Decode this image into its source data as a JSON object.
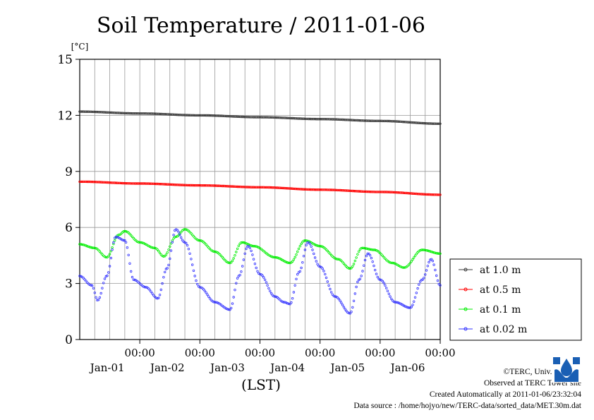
{
  "chart_data": {
    "type": "scatter",
    "title": "Soil Temperature / 2011-01-06",
    "ylabel": "[°C]",
    "xlabel": "(LST)",
    "ylim": [
      0,
      15
    ],
    "yticks": [
      0,
      3,
      6,
      9,
      12,
      15
    ],
    "xlim_days": [
      0,
      6
    ],
    "xticks": [
      {
        "time": "00:00",
        "date": "Jan-01"
      },
      {
        "time": "00:00",
        "date": "Jan-02"
      },
      {
        "time": "00:00",
        "date": "Jan-03"
      },
      {
        "time": "00:00",
        "date": "Jan-04"
      },
      {
        "time": "00:00",
        "date": "Jan-05"
      },
      {
        "time": "00:00",
        "date": "Jan-06"
      }
    ],
    "grid": true,
    "legend_position": "right",
    "series": [
      {
        "name": "at 1.0 m",
        "color": "#3a3a3a",
        "points": [
          [
            0.0,
            12.2
          ],
          [
            1.0,
            12.1
          ],
          [
            2.0,
            12.0
          ],
          [
            3.0,
            11.9
          ],
          [
            4.0,
            11.8
          ],
          [
            5.0,
            11.7
          ],
          [
            6.0,
            11.55
          ]
        ]
      },
      {
        "name": "at 0.5 m",
        "color": "#ff0000",
        "points": [
          [
            0.0,
            8.45
          ],
          [
            1.0,
            8.35
          ],
          [
            2.0,
            8.25
          ],
          [
            3.0,
            8.15
          ],
          [
            4.0,
            8.02
          ],
          [
            5.0,
            7.9
          ],
          [
            6.0,
            7.75
          ]
        ]
      },
      {
        "name": "at 0.1 m",
        "color": "#00ee00",
        "points": [
          [
            0.0,
            5.1
          ],
          [
            0.25,
            4.9
          ],
          [
            0.45,
            4.4
          ],
          [
            0.65,
            5.6
          ],
          [
            0.75,
            5.8
          ],
          [
            1.0,
            5.2
          ],
          [
            1.25,
            4.9
          ],
          [
            1.4,
            4.45
          ],
          [
            1.6,
            5.5
          ],
          [
            1.75,
            5.9
          ],
          [
            2.0,
            5.3
          ],
          [
            2.25,
            4.7
          ],
          [
            2.5,
            4.1
          ],
          [
            2.7,
            5.2
          ],
          [
            2.9,
            5.0
          ],
          [
            3.25,
            4.4
          ],
          [
            3.5,
            4.1
          ],
          [
            3.75,
            5.3
          ],
          [
            4.0,
            5.0
          ],
          [
            4.3,
            4.3
          ],
          [
            4.5,
            3.8
          ],
          [
            4.7,
            4.9
          ],
          [
            4.9,
            4.8
          ],
          [
            5.2,
            4.1
          ],
          [
            5.4,
            3.85
          ],
          [
            5.7,
            4.8
          ],
          [
            6.0,
            4.6
          ]
        ]
      },
      {
        "name": "at 0.02 m",
        "color": "#3333ff",
        "points": [
          [
            0.0,
            3.4
          ],
          [
            0.2,
            2.9
          ],
          [
            0.3,
            2.1
          ],
          [
            0.45,
            3.4
          ],
          [
            0.6,
            5.5
          ],
          [
            0.75,
            5.3
          ],
          [
            0.9,
            3.2
          ],
          [
            1.1,
            2.8
          ],
          [
            1.3,
            2.2
          ],
          [
            1.45,
            3.8
          ],
          [
            1.6,
            5.9
          ],
          [
            1.75,
            5.2
          ],
          [
            2.0,
            2.8
          ],
          [
            2.25,
            2.0
          ],
          [
            2.5,
            1.6
          ],
          [
            2.65,
            3.4
          ],
          [
            2.8,
            5.0
          ],
          [
            3.0,
            3.5
          ],
          [
            3.25,
            2.3
          ],
          [
            3.4,
            2.0
          ],
          [
            3.5,
            1.9
          ],
          [
            3.65,
            3.6
          ],
          [
            3.8,
            5.2
          ],
          [
            4.0,
            3.9
          ],
          [
            4.25,
            2.3
          ],
          [
            4.5,
            1.4
          ],
          [
            4.65,
            3.2
          ],
          [
            4.8,
            4.6
          ],
          [
            5.0,
            3.2
          ],
          [
            5.25,
            2.0
          ],
          [
            5.5,
            1.7
          ],
          [
            5.7,
            3.2
          ],
          [
            5.85,
            4.3
          ],
          [
            6.0,
            2.9
          ]
        ]
      }
    ]
  },
  "footer": {
    "copyright": "©TERC, Univ. Tsukuba",
    "observed": "Observed at TERC Tower site",
    "created": "Created Automatically at 2011-01-06/23:32:04",
    "source": "Data source : /home/hojyo/new/TERC-data/sorted_data/MET.30m.dat"
  }
}
